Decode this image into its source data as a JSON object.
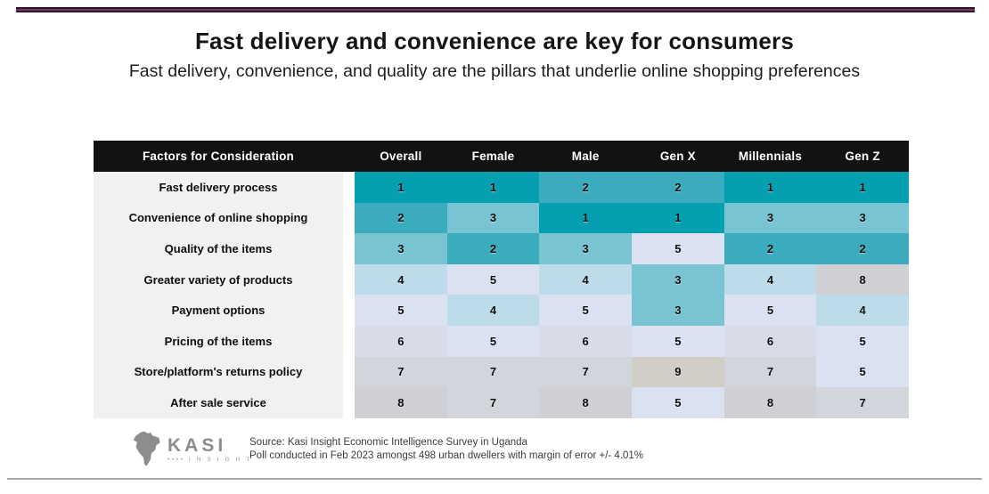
{
  "page": {
    "title": "Fast delivery and convenience are key for consumers",
    "subtitle": "Fast delivery, convenience, and quality are the pillars that underlie online shopping preferences"
  },
  "chart_data": {
    "type": "heatmap",
    "title": "Fast delivery and convenience are key for consumers",
    "subtitle": "Fast delivery, convenience, and quality are the pillars that underlie online shopping preferences",
    "row_header_label": "Factors for Consideration",
    "columns": [
      "Overall",
      "Female",
      "Male",
      "Gen X",
      "Millennials",
      "Gen Z"
    ],
    "rows": [
      {
        "label": "Fast delivery process",
        "values": [
          1,
          1,
          2,
          2,
          1,
          1
        ]
      },
      {
        "label": "Convenience of online shopping",
        "values": [
          2,
          3,
          1,
          1,
          3,
          3
        ]
      },
      {
        "label": "Quality of the items",
        "values": [
          3,
          2,
          3,
          5,
          2,
          2
        ]
      },
      {
        "label": "Greater variety of products",
        "values": [
          4,
          5,
          4,
          3,
          4,
          8
        ]
      },
      {
        "label": "Payment options",
        "values": [
          5,
          4,
          5,
          3,
          5,
          4
        ]
      },
      {
        "label": "Pricing of the items",
        "values": [
          6,
          5,
          6,
          5,
          6,
          5
        ]
      },
      {
        "label": "Store/platform's returns policy",
        "values": [
          7,
          7,
          7,
          9,
          7,
          5
        ]
      },
      {
        "label": "After sale service",
        "values": [
          8,
          7,
          8,
          5,
          8,
          7
        ]
      }
    ],
    "value_meaning": "rank of importance, 1 = most important",
    "rank_colors": {
      "1": "#049fb1",
      "2": "#3aacbd",
      "3": "#79c4d2",
      "4": "#bedbe9",
      "5": "#dae1f1",
      "6": "#d8dce8",
      "7": "#d3d5dc",
      "8": "#d0cfd4",
      "9": "#d1cec7"
    },
    "legend_position": "none",
    "grid": false
  },
  "footer": {
    "logo_text": "KASI",
    "logo_subtext": "•••• I N S I G H T",
    "source_line1": "Source: Kasi Insight Economic Intelligence Survey in Uganda",
    "source_line2": "Poll conducted in Feb 2023 amongst 498 urban dwellers with margin of error +/- 4.01%"
  },
  "colors": {
    "accent_bar_edge": "#2e1129",
    "accent_bar_mid": "#7e4c74",
    "table_header_bg": "#121212",
    "table_header_text": "#ffffff",
    "label_column_bg": "#f1f1f0",
    "bottom_line": "#a9a9a9",
    "logo_gray": "#8d8d8d"
  }
}
